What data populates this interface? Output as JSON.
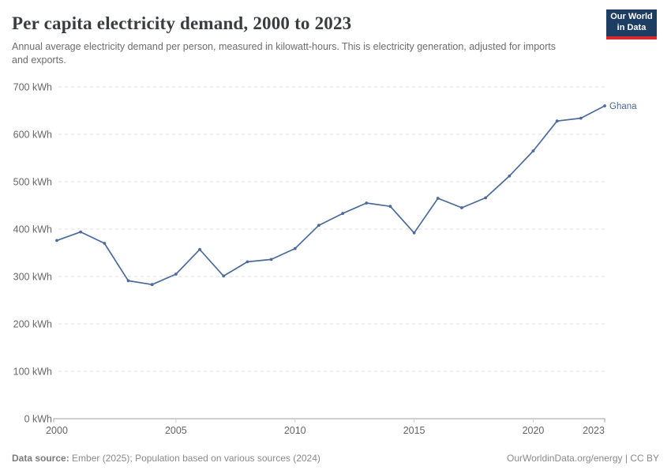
{
  "header": {
    "title": "Per capita electricity demand, 2000 to 2023",
    "subtitle": "Annual average electricity demand per person, measured in kilowatt-hours. This is electricity generation, adjusted for imports and exports.",
    "logo": {
      "line1": "Our World",
      "line2": "in Data",
      "bg_color": "#1d3d63",
      "stripe_color": "#d7282d"
    }
  },
  "chart_data": {
    "type": "line",
    "x": [
      2000,
      2001,
      2002,
      2003,
      2004,
      2005,
      2006,
      2007,
      2008,
      2009,
      2010,
      2011,
      2012,
      2013,
      2014,
      2015,
      2016,
      2017,
      2018,
      2019,
      2020,
      2021,
      2022,
      2023
    ],
    "series": [
      {
        "name": "Ghana",
        "color": "#4C6A9C",
        "values": [
          376,
          394,
          370,
          291,
          283,
          305,
          357,
          301,
          331,
          336,
          359,
          408,
          433,
          455,
          448,
          392,
          465,
          445,
          466,
          512,
          565,
          628,
          634,
          660
        ]
      }
    ],
    "title": "Per capita electricity demand, 2000 to 2023",
    "xlabel": "",
    "ylabel": "",
    "ylim": [
      0,
      700
    ],
    "xlim": [
      2000,
      2023
    ],
    "y_ticks": [
      0,
      100,
      200,
      300,
      400,
      500,
      600,
      700
    ],
    "y_tick_suffix": " kWh",
    "x_ticks": [
      2000,
      2005,
      2010,
      2015,
      2020,
      2023
    ],
    "grid": "horizontal-dashed",
    "legend_position": "end-of-line-label",
    "colors": {
      "gridline": "#dcdcdc",
      "axis_line": "#9e9e9e",
      "axis_tick": "#cfcfcf",
      "tick_label": "#666666"
    }
  },
  "footer": {
    "source_label": "Data source:",
    "source_text": " Ember (2025); Population based on various sources (2024)",
    "right_text": "OurWorldinData.org/energy | CC BY"
  }
}
